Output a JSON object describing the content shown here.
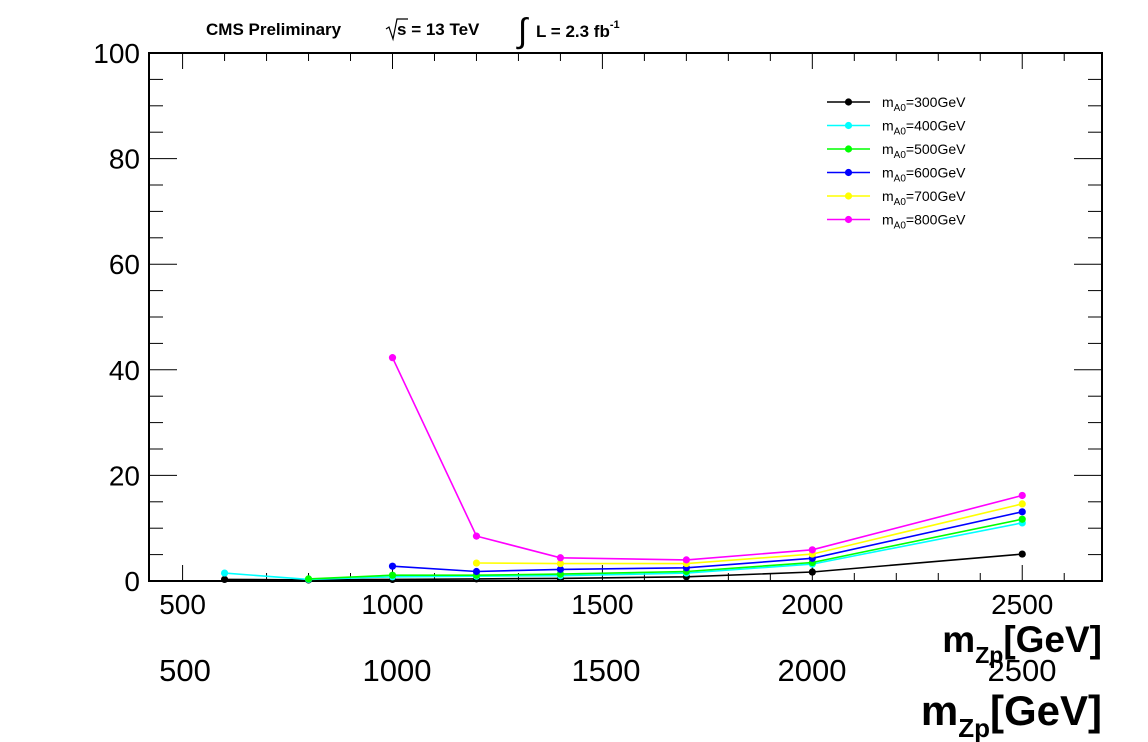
{
  "header": {
    "experiment": "CMS Preliminary",
    "energy_sqrt": "s",
    "energy_rest": " = 13 TeV",
    "lumi_integral": "∫",
    "lumi_text": "L = 2.3 fb",
    "lumi_sup": "-1"
  },
  "ghost_axis": {
    "tick_labels": [
      "500",
      "1000",
      "1500",
      "2000",
      "2500"
    ],
    "xlabel_main": "m",
    "xlabel_sub": "Zp",
    "xlabel_unit": "[GeV]"
  },
  "chart_data": {
    "type": "line",
    "xlabel_main": "m",
    "xlabel_sub": "Zp",
    "xlabel_unit": "[GeV]",
    "ylabel": "",
    "xlim": [
      420,
      2690
    ],
    "ylim": [
      0,
      100
    ],
    "x_ticks": [
      500,
      1000,
      1500,
      2000,
      2500
    ],
    "y_ticks": [
      0,
      20,
      40,
      60,
      80,
      100
    ],
    "grid": false,
    "legend_position": "top-right",
    "series": [
      {
        "legend_main": "m",
        "legend_sub": "A0",
        "legend_rest": "=300GeV",
        "color": "#000000",
        "x": [
          600,
          800,
          1000,
          1200,
          1400,
          1700,
          2000,
          2500
        ],
        "y": [
          0.3,
          0.2,
          0.3,
          0.4,
          0.5,
          0.8,
          1.7,
          5.1
        ]
      },
      {
        "legend_main": "m",
        "legend_sub": "A0",
        "legend_rest": "=400GeV",
        "color": "#00ffff",
        "x": [
          600,
          800,
          1000,
          1200,
          1400,
          1700,
          2000,
          2500
        ],
        "y": [
          1.5,
          0.3,
          0.8,
          0.9,
          1.0,
          1.5,
          3.2,
          11.0
        ]
      },
      {
        "legend_main": "m",
        "legend_sub": "A0",
        "legend_rest": "=500GeV",
        "color": "#00ff00",
        "x": [
          800,
          1000,
          1200,
          1400,
          1700,
          2000,
          2500
        ],
        "y": [
          0.4,
          1.1,
          1.1,
          1.3,
          1.8,
          3.5,
          11.7
        ]
      },
      {
        "legend_main": "m",
        "legend_sub": "A0",
        "legend_rest": "=600GeV",
        "color": "#0000ff",
        "x": [
          1000,
          1200,
          1400,
          1700,
          2000,
          2500
        ],
        "y": [
          2.8,
          1.8,
          2.2,
          2.5,
          4.3,
          13.1
        ]
      },
      {
        "legend_main": "m",
        "legend_sub": "A0",
        "legend_rest": "=700GeV",
        "color": "#ffff00",
        "x": [
          1200,
          1400,
          1700,
          2000,
          2500
        ],
        "y": [
          3.4,
          3.3,
          3.3,
          5.1,
          14.6
        ]
      },
      {
        "legend_main": "m",
        "legend_sub": "A0",
        "legend_rest": "=800GeV",
        "color": "#ff00ff",
        "x": [
          1000,
          1200,
          1400,
          1700,
          2000,
          2500
        ],
        "y": [
          42.3,
          8.5,
          4.4,
          4.0,
          5.9,
          16.2
        ]
      }
    ]
  }
}
